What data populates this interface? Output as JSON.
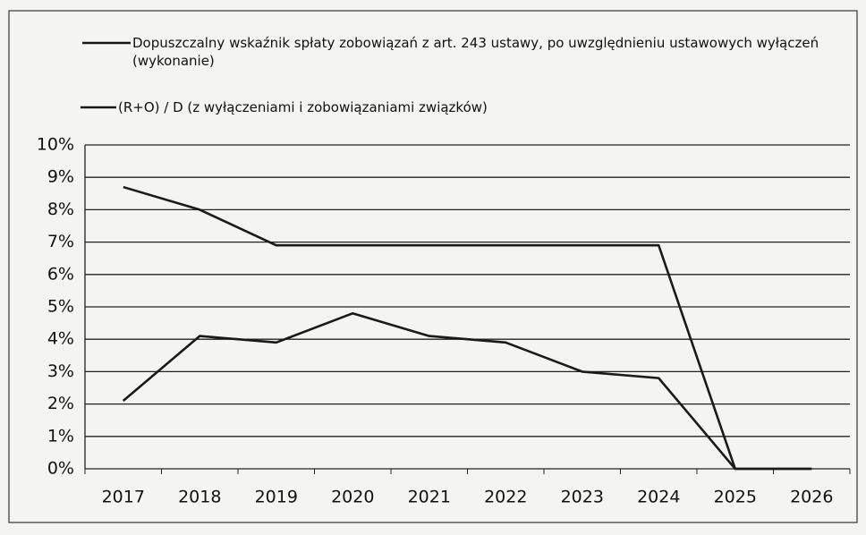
{
  "chart_data": {
    "type": "line",
    "categories": [
      "2017",
      "2018",
      "2019",
      "2020",
      "2021",
      "2022",
      "2023",
      "2024",
      "2025",
      "2026"
    ],
    "series": [
      {
        "name": "Dopuszczalny wskaźnik spłaty zobowiązań z art. 243 ustawy, po uwzględnieniu ustawowych wyłączeń (wykonanie)",
        "color": "#1a1a1a",
        "values": [
          8.7,
          8.0,
          6.9,
          6.9,
          6.9,
          6.9,
          6.9,
          6.9,
          0,
          0
        ]
      },
      {
        "name": "(R+O) / D (z wyłączeniami i zobowiązaniami związków)",
        "color": "#1a1a1a",
        "values": [
          2.1,
          4.1,
          3.9,
          4.8,
          4.1,
          3.9,
          3.0,
          2.8,
          0,
          0
        ]
      }
    ],
    "ylim": [
      0,
      10
    ],
    "yticks": [
      {
        "value": 0,
        "label": "0%"
      },
      {
        "value": 1,
        "label": "1%"
      },
      {
        "value": 2,
        "label": "2%"
      },
      {
        "value": 3,
        "label": "3%"
      },
      {
        "value": 4,
        "label": "4%"
      },
      {
        "value": 5,
        "label": "5%"
      },
      {
        "value": 6,
        "label": "6%"
      },
      {
        "value": 7,
        "label": "7%"
      },
      {
        "value": 8,
        "label": "8%"
      },
      {
        "value": 9,
        "label": "9%"
      },
      {
        "value": 10,
        "label": "10%"
      }
    ],
    "grid": true,
    "legend": "top-left"
  }
}
